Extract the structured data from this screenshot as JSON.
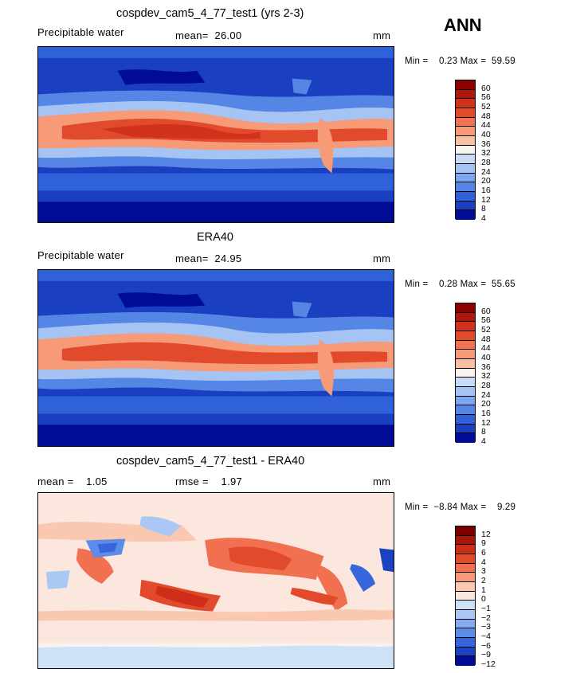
{
  "season": "ANN",
  "panels": [
    {
      "id": "model",
      "title": "cospdev_cam5_4_77_test1 (yrs 2-3)",
      "variable": "Precipitable water",
      "stat": "mean=  26.00",
      "units": "mm",
      "minmax": "Min =    0.23 Max =  59.59",
      "colorbar_labels": [
        "60",
        "56",
        "52",
        "48",
        "44",
        "40",
        "36",
        "32",
        "28",
        "24",
        "20",
        "16",
        "12",
        "8",
        "4"
      ]
    },
    {
      "id": "obs",
      "title": "ERA40",
      "variable": "Precipitable water",
      "stat": "mean=  24.95",
      "units": "mm",
      "minmax": "Min =    0.28 Max =  55.65",
      "colorbar_labels": [
        "60",
        "56",
        "52",
        "48",
        "44",
        "40",
        "36",
        "32",
        "28",
        "24",
        "20",
        "16",
        "12",
        "8",
        "4"
      ]
    },
    {
      "id": "diff",
      "title": "cospdev_cam5_4_77_test1 - ERA40",
      "mean": "mean =    1.05",
      "rmse": "rmse =    1.97",
      "units": "mm",
      "minmax": "Min =  −8.84 Max =    9.29",
      "colorbar_labels": [
        "12",
        "9",
        "6",
        "4",
        "3",
        "2",
        "1",
        "0",
        "−1",
        "−2",
        "−3",
        "−4",
        "−6",
        "−9",
        "−12"
      ]
    }
  ],
  "colors": {
    "abs_scale": [
      "#8b0000",
      "#b0160b",
      "#d1321c",
      "#e24a2c",
      "#f07454",
      "#f69a78",
      "#f9c0a4",
      "#f7f4f0",
      "#c8dcf6",
      "#a5c4f3",
      "#7ea6ee",
      "#5586e6",
      "#2f62d9",
      "#1a3fc0",
      "#000c94"
    ],
    "diff_scale": [
      "#7a0000",
      "#a8140a",
      "#cc2e18",
      "#e24a2c",
      "#f07050",
      "#f6987a",
      "#fac8b0",
      "#fbe7de",
      "#cfe1f7",
      "#aac8f3",
      "#85aaef",
      "#5d8be8",
      "#3566db",
      "#1c42c4",
      "#000c94"
    ]
  }
}
